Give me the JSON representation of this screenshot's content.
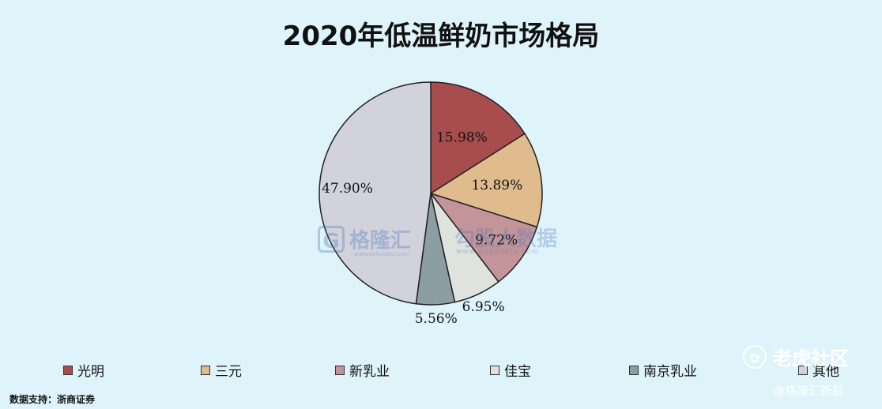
{
  "chart_data": {
    "type": "pie",
    "title": "2020年低温鲜奶市场格局",
    "categories": [
      "光明",
      "三元",
      "新乳业",
      "佳宝",
      "南京乳业",
      "其他"
    ],
    "values": [
      15.98,
      13.89,
      9.72,
      6.95,
      5.56,
      47.9
    ],
    "labels": [
      "15.98%",
      "13.89%",
      "9.72%",
      "6.95%",
      "5.56%",
      "47.90%"
    ],
    "colors": [
      "#a84d4e",
      "#dfbb8e",
      "#c3949a",
      "#dfe3dd",
      "#8c9ea3",
      "#d2d2dc"
    ],
    "legend_position": "bottom"
  },
  "source_text": "数据支持：浙商证券",
  "watermarks": {
    "gelonghui_logo": "G",
    "gelonghui": "格隆汇",
    "gelonghui_url": "www.gelonghui.com",
    "gogudata": "勾股大数据",
    "gogudata_url": "www.gogudata.com"
  },
  "brand": {
    "icon": "tiger-icon",
    "name": "老虎社区",
    "author": "@格隆汇新股"
  }
}
